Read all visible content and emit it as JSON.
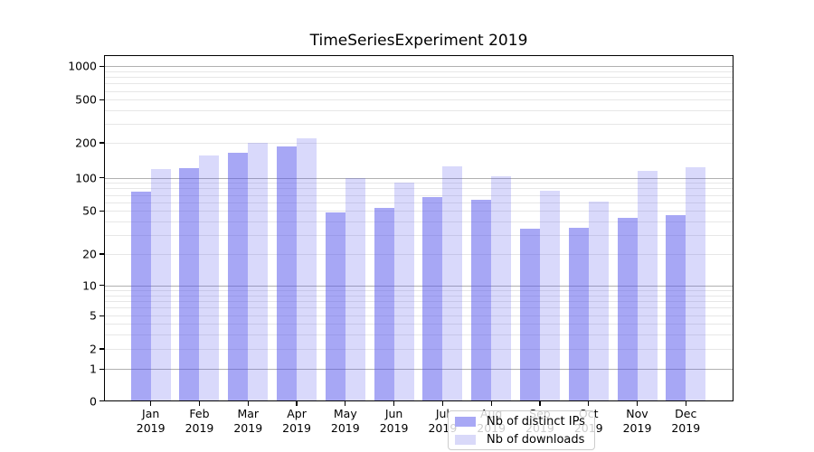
{
  "chart_data": {
    "type": "bar",
    "title": "TimeSeriesExperiment 2019",
    "categories": [
      "Jan",
      "Feb",
      "Mar",
      "Apr",
      "May",
      "Jun",
      "Jul",
      "Aug",
      "Sep",
      "Oct",
      "Nov",
      "Dec"
    ],
    "category_year": "2019",
    "series": [
      {
        "name": "Nb of distinct IPs",
        "color": "rgba(80,80,235,0.5)",
        "color_solid": "#a8a8f5",
        "values": [
          75,
          121,
          164,
          185,
          48,
          53,
          67,
          63,
          34,
          35,
          43,
          46
        ]
      },
      {
        "name": "Nb of downloads",
        "color": "rgba(80,80,235,0.22)",
        "color_solid": "#d9d9f9",
        "values": [
          120,
          155,
          201,
          222,
          100,
          90,
          126,
          104,
          76,
          61,
          115,
          124
        ]
      }
    ],
    "xlabel": "",
    "ylabel": "",
    "y_axis": {
      "scale": "symlog",
      "ticks": [
        0,
        1,
        2,
        5,
        10,
        20,
        50,
        100,
        200,
        500,
        1000
      ],
      "range": [
        0,
        1250
      ]
    },
    "grid": {
      "horizontal": "major+minor",
      "major_color": "#b0b0b0",
      "minor_color": "#e7e7e7"
    },
    "legend_position": "lower center"
  }
}
